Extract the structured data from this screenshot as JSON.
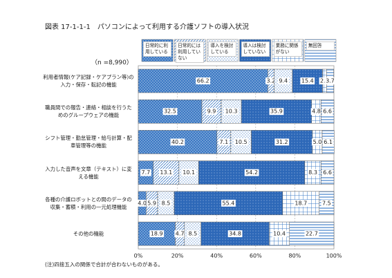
{
  "chart_data": {
    "type": "stacked-bar-horizontal",
    "title": "図表 17-1-1-1　パソコンによって利用する介護ソフトの導入状況",
    "subtitle": "（n =8,990）",
    "note": "(注)四捨五入の関係で合計が合わないものがある。",
    "categories": [
      "利用者情報(ケア記録・ケアプラン等)の入力・保存・転記の機能",
      "職員間での報告・連絡・相談を行うためのグループウェアの機能",
      "シフト管理・勤怠管理・給与計算・配車管理等の機能",
      "入力した音声を文章（テキスト）に変える機能",
      "各種の介護ロボットとの間のデータの収集・蓄積・利用の一元処理機能",
      "その他の機能"
    ],
    "series": [
      {
        "name": "日常的に利用している",
        "color": "#3a78c4",
        "pattern": "dots",
        "values": [
          66.2,
          32.5,
          40.2,
          7.7,
          4.0,
          18.9
        ],
        "value_labels": [
          "66.2",
          "32.5",
          "40.2",
          "7.7",
          "4.0",
          "18.9"
        ]
      },
      {
        "name": "日常的には利用していない",
        "color": "#3a78c4",
        "pattern": "hatch",
        "values": [
          3.2,
          9.9,
          7.1,
          13.1,
          5.9,
          4.7
        ]
      },
      {
        "name": "導入を検討している",
        "color": "#3a78c4",
        "pattern": "sparse-dots",
        "values": [
          9.4,
          10.3,
          10.5,
          10.1,
          8.5,
          8.5
        ]
      },
      {
        "name": "導入は検討していない",
        "color": "#2d68b8",
        "pattern": "dense-dots",
        "values": [
          15.4,
          35.9,
          31.2,
          54.2,
          55.4,
          34.8
        ]
      },
      {
        "name": "業務に関係がない",
        "color": "#3a78c4",
        "pattern": "grid",
        "values": [
          2.0,
          4.8,
          5.0,
          8.3,
          18.7,
          10.4
        ],
        "value_labels": [
          "2.0",
          "4.8",
          "5.0",
          "8.3",
          "18.7",
          "10.4"
        ]
      },
      {
        "name": "無回答",
        "color": "#8fb4e0",
        "pattern": "stripes",
        "values": [
          3.7,
          6.6,
          6.1,
          6.6,
          7.5,
          22.7
        ]
      }
    ],
    "xlim": [
      0,
      100
    ],
    "xticks": [
      {
        "value": 0,
        "label": "0%"
      },
      {
        "value": 20,
        "label": "20%"
      },
      {
        "value": 40,
        "label": "40%"
      },
      {
        "value": 60,
        "label": "60%"
      },
      {
        "value": 80,
        "label": "80%"
      },
      {
        "value": 100,
        "label": "100%"
      }
    ],
    "grid": true
  }
}
